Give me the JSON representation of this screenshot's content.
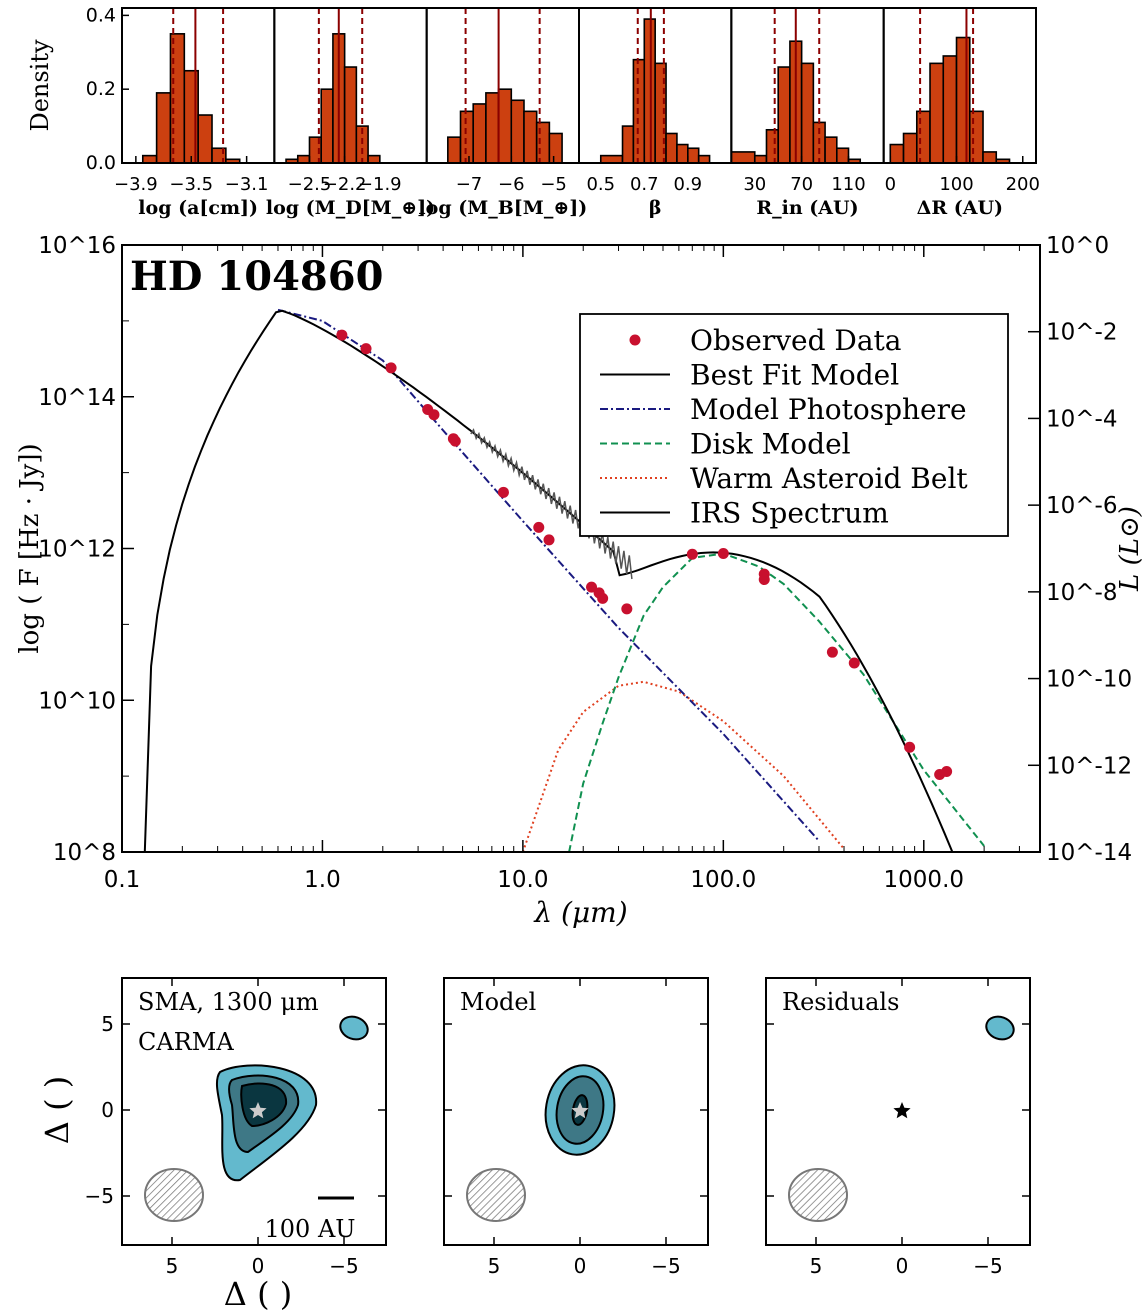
{
  "histograms": {
    "ylabel": "Density",
    "yticks": [
      0.0,
      0.2,
      0.4
    ],
    "ylim": [
      0,
      0.42
    ],
    "bar_color": "#cc4010",
    "median_color": "#8b0000",
    "panels": [
      {
        "label": "log (a[cm])",
        "xlim": [
          -4.0,
          -2.9
        ],
        "xticks": [
          "-3.9",
          "-3.5",
          "-3.1"
        ],
        "xtick_values": [
          -3.9,
          -3.5,
          -3.1
        ],
        "bins": [
          -3.95,
          -3.85,
          -3.75,
          -3.65,
          -3.55,
          -3.45,
          -3.35,
          -3.25,
          -3.15,
          -3.05,
          -2.95
        ],
        "values": [
          0.0,
          0.02,
          0.19,
          0.35,
          0.25,
          0.13,
          0.04,
          0.01,
          0.0,
          0.0
        ],
        "median": -3.47,
        "lower": -3.63,
        "upper": -3.27
      },
      {
        "label": "log (M_D[M_⊕])",
        "xlim": [
          -2.8,
          -1.5
        ],
        "xticks": [
          "-2.5",
          "-2.2",
          "-1.9"
        ],
        "xtick_values": [
          -2.5,
          -2.2,
          -1.9
        ],
        "bins": [
          -2.8,
          -2.7,
          -2.6,
          -2.5,
          -2.4,
          -2.3,
          -2.2,
          -2.1,
          -2.0,
          -1.9,
          -1.8,
          -1.7
        ],
        "values": [
          0.0,
          0.01,
          0.02,
          0.07,
          0.2,
          0.35,
          0.26,
          0.1,
          0.02,
          0.0,
          0.0
        ],
        "median": -2.25,
        "lower": -2.42,
        "upper": -2.05
      },
      {
        "label": "log (M_B[M_⊕])",
        "xlim": [
          -8.0,
          -4.4
        ],
        "xticks": [
          "-7",
          "-6",
          "-5"
        ],
        "xtick_values": [
          -7,
          -6,
          -5
        ],
        "bins": [
          -7.5,
          -7.2,
          -6.9,
          -6.6,
          -6.3,
          -6.0,
          -5.7,
          -5.4,
          -5.1,
          -4.8
        ],
        "values": [
          0.07,
          0.14,
          0.16,
          0.19,
          0.2,
          0.17,
          0.14,
          0.11,
          0.08
        ],
        "median": -6.3,
        "lower": -7.08,
        "upper": -5.33
      },
      {
        "label": "β",
        "xlim": [
          0.4,
          1.1
        ],
        "xticks": [
          "0.5",
          "0.7",
          "0.9"
        ],
        "xtick_values": [
          0.5,
          0.7,
          0.9
        ],
        "bins": [
          0.4,
          0.5,
          0.6,
          0.65,
          0.7,
          0.75,
          0.8,
          0.85,
          0.9,
          0.95,
          1.0
        ],
        "values": [
          0.0,
          0.02,
          0.1,
          0.28,
          0.39,
          0.27,
          0.08,
          0.05,
          0.04,
          0.02
        ],
        "median": 0.73,
        "lower": 0.67,
        "upper": 0.79
      },
      {
        "label": "R_in (AU)",
        "xlim": [
          10,
          140
        ],
        "xticks": [
          "30",
          "70",
          "110"
        ],
        "xtick_values": [
          30,
          70,
          110
        ],
        "bins": [
          10,
          30,
          40,
          50,
          60,
          70,
          80,
          90,
          100,
          110,
          120,
          130
        ],
        "values": [
          0.03,
          0.02,
          0.09,
          0.26,
          0.33,
          0.27,
          0.11,
          0.07,
          0.04,
          0.01,
          0.0
        ],
        "median": 65,
        "lower": 47,
        "upper": 85
      },
      {
        "label": "ΔR (AU)",
        "xlim": [
          -10,
          220
        ],
        "xticks": [
          "0",
          "100",
          "200"
        ],
        "xtick_values": [
          0,
          100,
          200
        ],
        "bins": [
          -10,
          0,
          20,
          40,
          60,
          80,
          100,
          120,
          140,
          160,
          180,
          200
        ],
        "values": [
          0.0,
          0.05,
          0.08,
          0.14,
          0.27,
          0.29,
          0.34,
          0.14,
          0.03,
          0.01,
          0.0
        ],
        "median": 115,
        "lower": 45,
        "upper": 125
      }
    ]
  },
  "sed": {
    "title": "HD 104860",
    "xlabel": "λ (μm)",
    "ylabel": "log ( F [Hz · Jy])",
    "y2label": "L (L⊙)",
    "xticks": [
      "0.1",
      "1.0",
      "10.0",
      "100.0",
      "1000.0"
    ],
    "yticks_left": [
      "10^8",
      "10^10",
      "10^12",
      "10^14",
      "10^16"
    ],
    "yticks_right": [
      "10^-14",
      "10^-12",
      "10^-10",
      "10^-8",
      "10^-6",
      "10^-4",
      "10^-2",
      "10^0"
    ],
    "legend": [
      {
        "label": "Observed Data",
        "style": "dot",
        "color": "#c8102e"
      },
      {
        "label": "Best Fit Model",
        "style": "solid",
        "color": "#000000"
      },
      {
        "label": "Model Photosphere",
        "style": "dashdot",
        "color": "#1a1a80"
      },
      {
        "label": "Disk Model",
        "style": "dashed",
        "color": "#109050"
      },
      {
        "label": "Warm Asteroid Belt",
        "style": "dotted",
        "color": "#e04020"
      },
      {
        "label": "IRS Spectrum",
        "style": "solid",
        "color": "#000000"
      }
    ]
  },
  "chart_data": {
    "type": "scatter",
    "x_scale": "log",
    "y_scale": "log",
    "xlim": [
      0.1,
      3800
    ],
    "ylim": [
      100000000.0,
      1e+16
    ],
    "observed": {
      "x": [
        1.25,
        1.65,
        2.2,
        3.35,
        3.6,
        4.5,
        4.6,
        8.0,
        12,
        13.5,
        22,
        24,
        25,
        33,
        70,
        100,
        160,
        160,
        350,
        450,
        850,
        1200,
        1300
      ],
      "y": [
        650000000000000.0,
        430000000000000.0,
        240000000000000.0,
        68000000000000.0,
        58000000000000.0,
        28000000000000.0,
        26000000000000.0,
        5500000000000.0,
        1900000000000.0,
        1300000000000.0,
        310000000000.0,
        260000000000.0,
        220000000000.0,
        160000000000.0,
        840000000000.0,
        860000000000.0,
        460000000000.0,
        390000000000.0,
        43000000000.0,
        31000000000.0,
        2400000000.0,
        1050000000.0,
        1150000000.0
      ]
    },
    "photosphere": {
      "x": [
        0.6,
        1,
        2,
        4,
        10,
        30,
        100,
        300
      ],
      "y": [
        1400000000000000.0,
        1000000000000000.0,
        300000000000000.0,
        36000000000000.0,
        2300000000000.0,
        90000000000.0,
        3600000000.0,
        140000000.0
      ]
    },
    "disk_model": {
      "x": [
        17,
        20,
        25,
        30,
        40,
        50,
        70,
        100,
        150,
        200,
        300,
        500,
        1000,
        2000
      ],
      "y": [
        100000000.0,
        800000000.0,
        5000000000.0,
        20000000000.0,
        130000000000.0,
        310000000000.0,
        750000000000.0,
        860000000000.0,
        580000000000.0,
        340000000000.0,
        110000000000.0,
        22000000000.0,
        1200000000.0,
        120000000.0
      ]
    },
    "asteroid_belt": {
      "x": [
        10,
        15,
        20,
        30,
        40,
        60,
        100,
        200,
        400
      ],
      "y": [
        100000000.0,
        2200000000.0,
        7000000000.0,
        15500000000.0,
        17500000000.0,
        13000000000.0,
        5300000000.0,
        1000000000.0,
        110000000.0
      ]
    }
  },
  "maps": {
    "xlabel": "Δ ( )",
    "ylabel": "Δ ( )",
    "xticks": [
      "5",
      "0",
      "−5"
    ],
    "yticks": [
      "5",
      "0",
      "−5"
    ],
    "panels": [
      {
        "label1": "SMA, 1300 μm",
        "label2": "CARMA",
        "scalebar": "100 AU"
      },
      {
        "label1": "Model"
      },
      {
        "label1": "Residuals"
      }
    ],
    "contour_colors": [
      "#63b9cd",
      "#3e7886",
      "#0a3640"
    ]
  }
}
